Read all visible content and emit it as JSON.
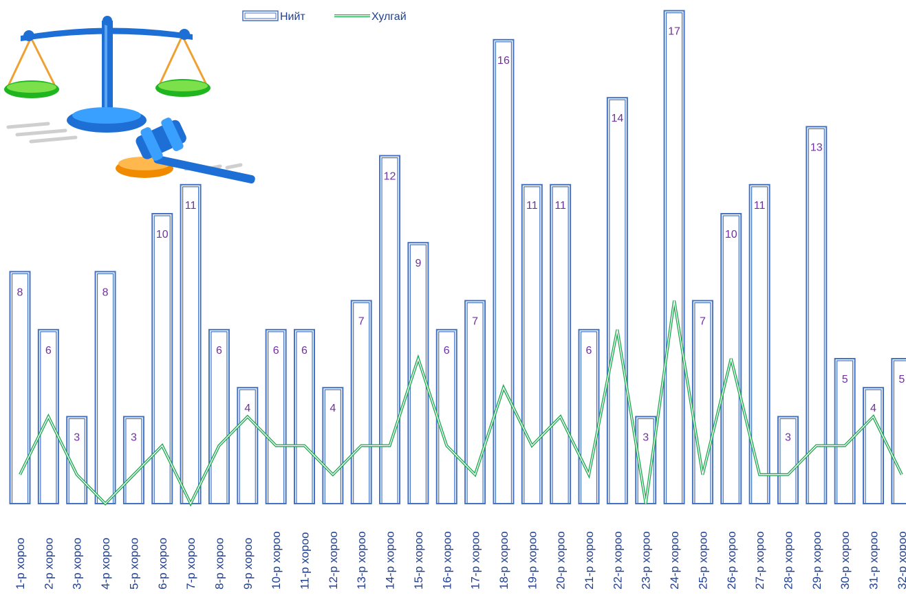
{
  "chart_data": {
    "type": "bar",
    "categories": [
      "1-р хороо",
      "2-р хороо",
      "3-р хороо",
      "4-р хороо",
      "5-р хороо",
      "6-р хороо",
      "7-р хороо",
      "8-р хороо",
      "9-р хороо",
      "10-р хороо",
      "11-р хороо",
      "12-р хороо",
      "13-р хороо",
      "14-р хороо",
      "15-р хороо",
      "16-р хороо",
      "17-р хороо",
      "18-р хороо",
      "19-р хороо",
      "20-р хороо",
      "21-р хороо",
      "22-р хороо",
      "23-р хороо",
      "24-р хороо",
      "25-р хороо",
      "26-р хороо",
      "27-р хороо",
      "28-р хороо",
      "29-р хороо",
      "30-р хороо",
      "31-р хороо",
      "32-р хороо"
    ],
    "series": [
      {
        "name": "Нийт",
        "kind": "bar",
        "values": [
          8,
          6,
          3,
          8,
          3,
          10,
          11,
          6,
          4,
          6,
          6,
          4,
          7,
          12,
          9,
          6,
          7,
          16,
          11,
          11,
          6,
          14,
          3,
          17,
          7,
          10,
          11,
          3,
          13,
          5,
          4,
          5
        ]
      },
      {
        "name": "Хулгай",
        "kind": "line",
        "values": [
          1,
          3,
          1,
          0,
          1,
          2,
          0,
          2,
          3,
          2,
          2,
          1,
          2,
          2,
          5,
          2,
          1,
          4,
          2,
          3,
          1,
          6,
          0,
          7,
          1,
          5,
          1,
          1,
          2,
          2,
          3,
          1
        ]
      }
    ],
    "ylim": [
      0,
      17
    ],
    "legend": "top-center",
    "grid": false,
    "colors": {
      "bar": "#4472c4",
      "line": "#1aa84d",
      "label": "#7030a0",
      "tick": "#1f3f8f"
    }
  },
  "legend": {
    "bar_label": "Нийт",
    "line_label": "Хулгай"
  },
  "decoration": {
    "icon": "scales-and-gavel-icon"
  }
}
